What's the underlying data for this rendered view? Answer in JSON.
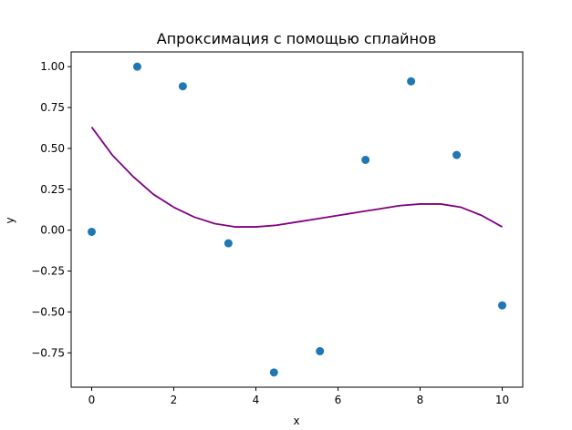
{
  "chart_data": {
    "type": "scatter",
    "title": "Апроксимация с помощью сплайнов",
    "xlabel": "x",
    "ylabel": "y",
    "xlim": [
      -0.5,
      10.5
    ],
    "ylim": [
      -0.96,
      1.09
    ],
    "xticks": [
      0,
      2,
      4,
      6,
      8,
      10
    ],
    "yticks": [
      -0.75,
      -0.5,
      -0.25,
      0.0,
      0.25,
      0.5,
      0.75,
      1.0
    ],
    "ytick_labels": [
      "−0.75",
      "−0.50",
      "−0.25",
      "0.00",
      "0.25",
      "0.50",
      "0.75",
      "1.00"
    ],
    "grid": false,
    "series": [
      {
        "kind": "scatter",
        "color": "#1f77b4",
        "x": [
          0,
          1.11,
          2.22,
          3.33,
          4.44,
          5.56,
          6.67,
          7.78,
          8.89,
          10
        ],
        "y": [
          -0.01,
          1.0,
          0.88,
          -0.08,
          -0.87,
          -0.74,
          0.43,
          0.91,
          0.46,
          -0.46
        ]
      },
      {
        "kind": "line",
        "color": "#800080",
        "x": [
          0,
          0.5,
          1,
          1.5,
          2,
          2.5,
          3,
          3.5,
          4,
          4.5,
          5,
          5.5,
          6,
          6.5,
          7,
          7.5,
          8,
          8.5,
          9,
          9.5,
          10
        ],
        "y": [
          0.63,
          0.46,
          0.33,
          0.22,
          0.14,
          0.08,
          0.04,
          0.02,
          0.02,
          0.03,
          0.05,
          0.07,
          0.09,
          0.11,
          0.13,
          0.15,
          0.16,
          0.16,
          0.14,
          0.09,
          0.02
        ]
      }
    ]
  }
}
